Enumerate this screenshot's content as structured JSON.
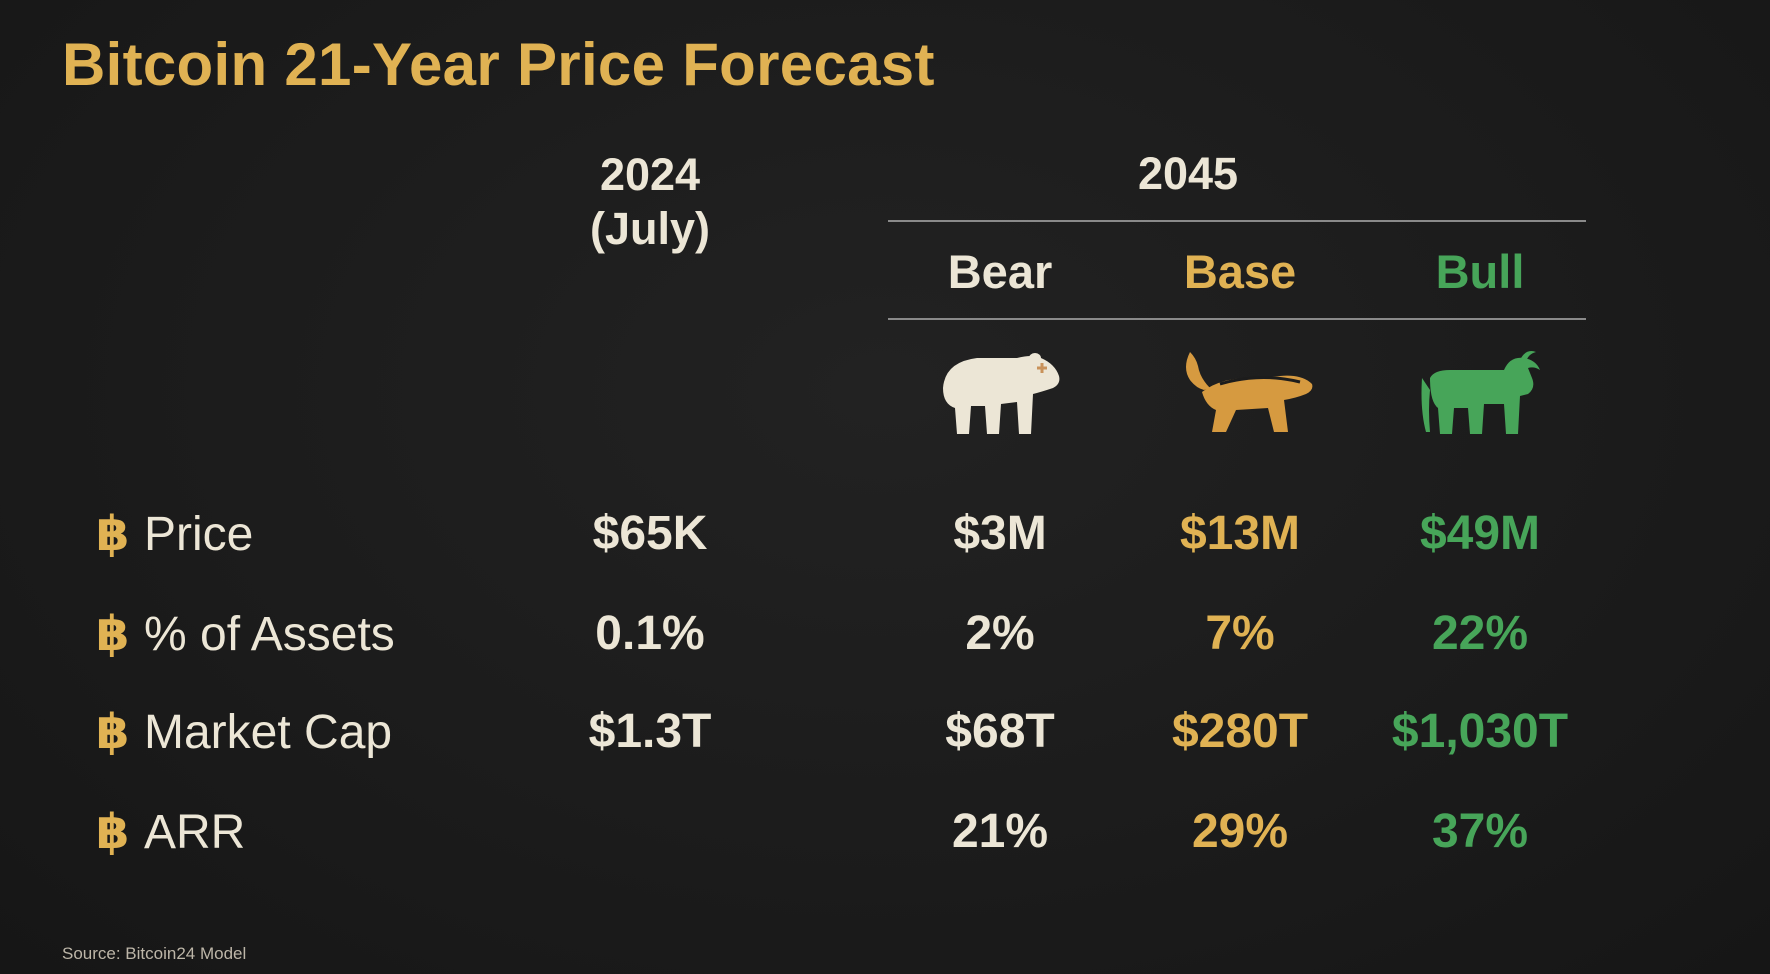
{
  "title": "Bitcoin 21-Year Price Forecast",
  "header": {
    "year_current": "2024",
    "year_current_sub": "(July)",
    "year_forecast": "2045",
    "scenarios": [
      "Bear",
      "Base",
      "Bull"
    ]
  },
  "icons": [
    "bear-icon",
    "honey-badger-icon",
    "bull-icon"
  ],
  "bullet_symbol": "฿",
  "rows": [
    {
      "label": "Price",
      "current": "$65K",
      "bear": "$3M",
      "base": "$13M",
      "bull": "$49M"
    },
    {
      "label": "% of Assets",
      "current": "0.1%",
      "bear": "2%",
      "base": "7%",
      "bull": "22%"
    },
    {
      "label": "Market Cap",
      "current": "$1.3T",
      "bear": "$68T",
      "base": "$280T",
      "bull": "$1,030T"
    },
    {
      "label": "ARR",
      "current": "",
      "bear": "21%",
      "base": "29%",
      "bull": "37%"
    }
  ],
  "source": "Source: Bitcoin24 Model",
  "colors": {
    "background": "#1c1c1c",
    "title_gold": "#e0b253",
    "bear": "#ece6d6",
    "base": "#e0b253",
    "bull": "#47a559"
  }
}
